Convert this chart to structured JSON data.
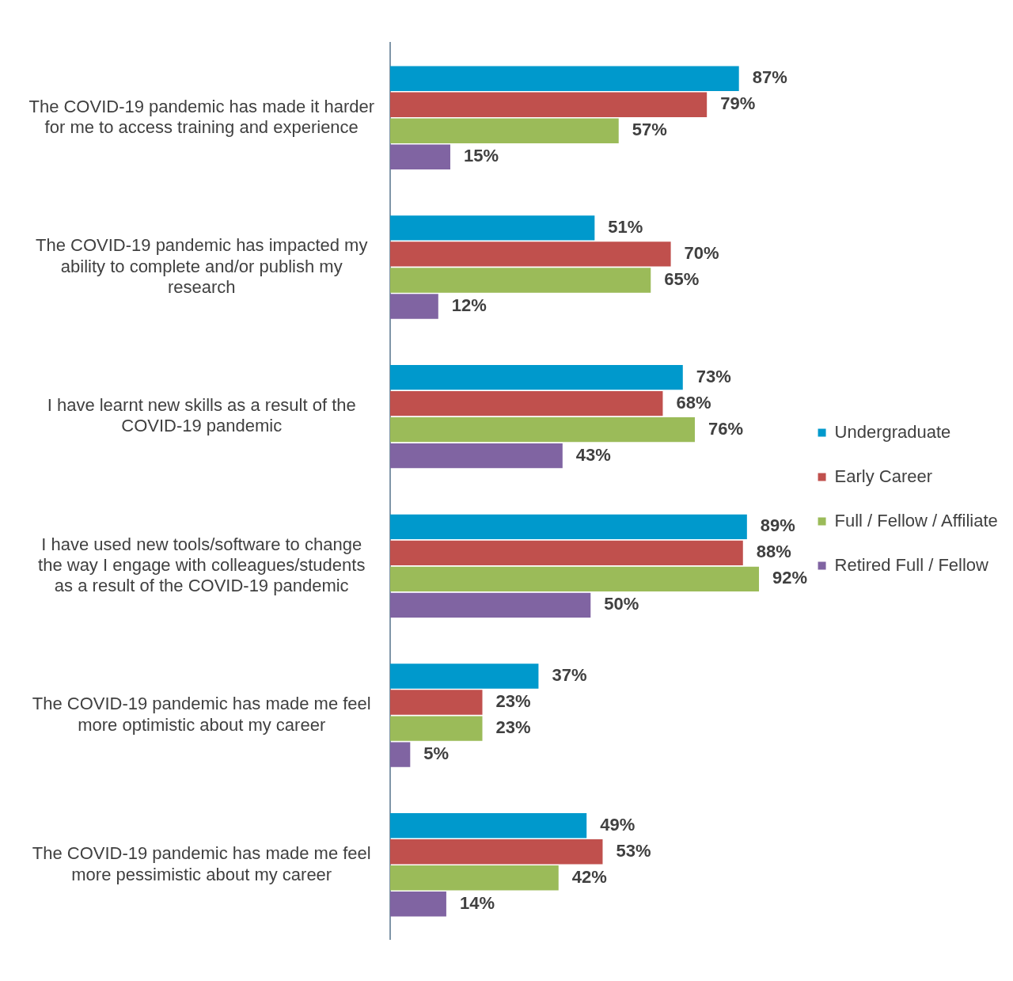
{
  "chart_data": {
    "type": "bar",
    "orientation": "horizontal",
    "categories": [
      "The COVID-19 pandemic has made it harder for me to access training and experience",
      "The COVID-19 pandemic has impacted my ability to complete and/or publish my research",
      "I have learnt new skills as a result of the COVID-19 pandemic",
      "I have used new tools/software to change the way I engage with colleagues/students as a result of the COVID-19 pandemic",
      "The COVID-19 pandemic has made me feel more optimistic about my career",
      "The COVID-19 pandemic has made me feel more pessimistic about my career"
    ],
    "series": [
      {
        "name": "Undergraduate",
        "color": "#0099cc",
        "values": [
          87,
          51,
          73,
          89,
          37,
          49
        ],
        "value_labels": [
          "87%",
          "51%",
          "73%",
          "89%",
          "37%",
          "49%"
        ]
      },
      {
        "name": "Early Career",
        "color": "#c0504d",
        "values": [
          79,
          70,
          68,
          88,
          23,
          53
        ],
        "value_labels": [
          "79%",
          "70%",
          "68%",
          "88%",
          "23%",
          "53%"
        ]
      },
      {
        "name": "Full / Fellow / Affiliate",
        "color": "#9bbb59",
        "values": [
          57,
          65,
          76,
          92,
          23,
          42
        ],
        "value_labels": [
          "57%",
          "65%",
          "76%",
          "92%",
          "23%",
          "42%"
        ]
      },
      {
        "name": "Retired Full / Fellow",
        "color": "#8064a2",
        "values": [
          15,
          12,
          43,
          50,
          5,
          14
        ],
        "value_labels": [
          "15%",
          "12%",
          "43%",
          "50%",
          "5%",
          "14%"
        ]
      }
    ],
    "tick_labels": "y",
    "grid": false,
    "legend": "right"
  }
}
